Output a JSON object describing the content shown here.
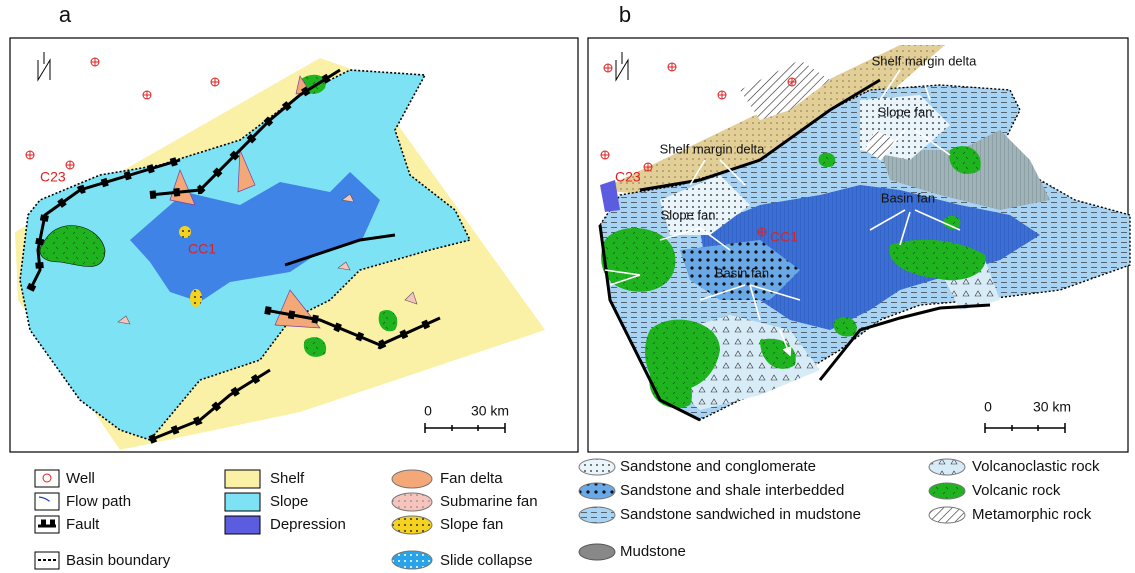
{
  "panels": [
    {
      "label": "a",
      "wells": [
        "C23",
        "CC1"
      ],
      "scale": {
        "start": "0",
        "end": "30 km"
      }
    },
    {
      "label": "b",
      "wells": [
        "C23",
        "CC1"
      ],
      "annotations": [
        "Shelf margin delta",
        "Slope fan",
        "Shelf margin delta",
        "Basin fan",
        "Slope fan",
        "Basin fan"
      ],
      "scale": {
        "start": "0",
        "end": "30 km"
      }
    }
  ],
  "legend": {
    "elements": [
      "Well",
      "Flow path",
      "Fault",
      "Basin boundary"
    ],
    "zones": [
      "Shelf",
      "Slope",
      "Depression"
    ],
    "fans": [
      "Fan delta",
      "Submarine fan",
      "Slope fan",
      "Slide collapse"
    ],
    "lithology": [
      "Sandstone and conglomerate",
      "Sandstone and shale interbedded",
      "Sandstone sandwiched in mudstone",
      "Mudstone"
    ],
    "rocks": [
      "Volcanoclastic rock",
      "Volcanic rock",
      "Metamorphic rock"
    ]
  }
}
